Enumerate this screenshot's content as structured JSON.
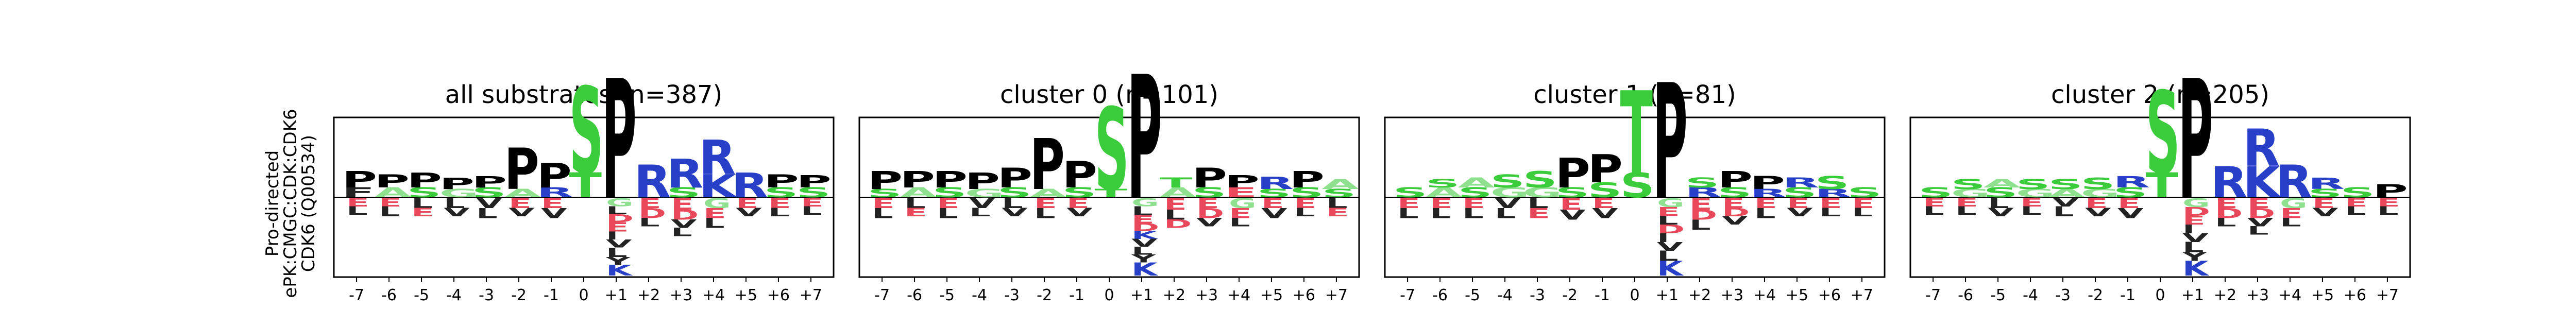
{
  "figure": {
    "side_label": [
      "Pro-directed",
      "ePK:CMGC:CDK:CDK6",
      "CDK6 (Q00534)"
    ]
  },
  "chart_data": [
    {
      "type": "sequence-logo",
      "title": "all substrates (n=387)",
      "positions": [
        "-7",
        "-6",
        "-5",
        "-4",
        "-3",
        "-2",
        "-1",
        "0",
        "+1",
        "+2",
        "+3",
        "+4",
        "+5",
        "+6",
        "+7"
      ],
      "up": [
        [
          [
            "F",
            0.12
          ],
          [
            "P",
            0.2
          ]
        ],
        [
          [
            "A",
            0.12
          ],
          [
            "P",
            0.16
          ]
        ],
        [
          [
            "S",
            0.12
          ],
          [
            "P",
            0.18
          ]
        ],
        [
          [
            "G",
            0.1
          ],
          [
            "P",
            0.14
          ]
        ],
        [
          [
            "S",
            0.12
          ],
          [
            "P",
            0.14
          ]
        ],
        [
          [
            "A",
            0.1
          ],
          [
            "P",
            0.5
          ]
        ],
        [
          [
            "R",
            0.12
          ],
          [
            "P",
            0.3
          ]
        ],
        [
          [
            "T",
            0.3
          ],
          [
            "S",
            1.05
          ]
        ],
        [
          [
            "P",
            1.45
          ]
        ],
        [
          [
            "R",
            0.4
          ]
        ],
        [
          [
            "S",
            0.12
          ],
          [
            "R",
            0.35
          ]
        ],
        [
          [
            "K",
            0.28
          ],
          [
            "R",
            0.42
          ]
        ],
        [
          [
            "R",
            0.3
          ]
        ],
        [
          [
            "S",
            0.12
          ],
          [
            "P",
            0.16
          ]
        ],
        [
          [
            "S",
            0.12
          ],
          [
            "P",
            0.15
          ]
        ]
      ],
      "down": [
        [
          [
            "E",
            0.1
          ],
          [
            "L",
            0.1
          ]
        ],
        [
          [
            "E",
            0.1
          ],
          [
            "L",
            0.12
          ]
        ],
        [
          [
            "L",
            0.12
          ],
          [
            "E",
            0.1
          ]
        ],
        [
          [
            "L",
            0.12
          ],
          [
            "V",
            0.1
          ]
        ],
        [
          [
            "V",
            0.12
          ],
          [
            "L",
            0.12
          ]
        ],
        [
          [
            "E",
            0.12
          ],
          [
            "V",
            0.1
          ]
        ],
        [
          [
            "E",
            0.12
          ],
          [
            "V",
            0.12
          ]
        ],
        [],
        [
          [
            "G",
            0.12
          ],
          [
            "L",
            0.12
          ],
          [
            "D",
            0.12
          ],
          [
            "E",
            0.14
          ],
          [
            "I",
            0.12
          ],
          [
            "V",
            0.12
          ],
          [
            "L",
            0.14
          ],
          [
            "Y",
            0.12
          ],
          [
            "K",
            0.16
          ]
        ],
        [
          [
            "E",
            0.12
          ],
          [
            "D",
            0.12
          ],
          [
            "L",
            0.1
          ]
        ],
        [
          [
            "E",
            0.14
          ],
          [
            "D",
            0.12
          ],
          [
            "V",
            0.1
          ],
          [
            "L",
            0.1
          ]
        ],
        [
          [
            "G",
            0.12
          ],
          [
            "E",
            0.12
          ],
          [
            "L",
            0.12
          ]
        ],
        [
          [
            "E",
            0.12
          ],
          [
            "V",
            0.1
          ]
        ],
        [
          [
            "E",
            0.12
          ],
          [
            "L",
            0.1
          ]
        ],
        [
          [
            "E",
            0.1
          ],
          [
            "L",
            0.1
          ]
        ]
      ]
    },
    {
      "type": "sequence-logo",
      "title": "cluster 0 (n=101)",
      "positions": [
        "-7",
        "-6",
        "-5",
        "-4",
        "-3",
        "-2",
        "-1",
        "0",
        "+1",
        "+2",
        "+3",
        "+4",
        "+5",
        "+6",
        "+7"
      ],
      "up": [
        [
          [
            "S",
            0.1
          ],
          [
            "P",
            0.22
          ]
        ],
        [
          [
            "A",
            0.12
          ],
          [
            "P",
            0.2
          ]
        ],
        [
          [
            "S",
            0.12
          ],
          [
            "P",
            0.2
          ]
        ],
        [
          [
            "G",
            0.1
          ],
          [
            "P",
            0.2
          ]
        ],
        [
          [
            "S",
            0.12
          ],
          [
            "P",
            0.24
          ]
        ],
        [
          [
            "A",
            0.1
          ],
          [
            "P",
            0.62
          ]
        ],
        [
          [
            "S",
            0.12
          ],
          [
            "P",
            0.32
          ]
        ],
        [
          [
            "T",
            0.1
          ],
          [
            "S",
            1.0
          ]
        ],
        [
          [
            "P",
            1.5
          ]
        ],
        [
          [
            "A",
            0.12
          ],
          [
            "T",
            0.12
          ]
        ],
        [
          [
            "S",
            0.12
          ],
          [
            "P",
            0.24
          ]
        ],
        [
          [
            "E",
            0.12
          ],
          [
            "P",
            0.15
          ]
        ],
        [
          [
            "S",
            0.1
          ],
          [
            "R",
            0.15
          ]
        ],
        [
          [
            "S",
            0.12
          ],
          [
            "P",
            0.2
          ]
        ],
        [
          [
            "S",
            0.1
          ],
          [
            "A",
            0.12
          ]
        ]
      ],
      "down": [
        [
          [
            "E",
            0.12
          ],
          [
            "L",
            0.12
          ]
        ],
        [
          [
            "L",
            0.12
          ],
          [
            "E",
            0.1
          ]
        ],
        [
          [
            "E",
            0.12
          ],
          [
            "L",
            0.12
          ]
        ],
        [
          [
            "V",
            0.12
          ],
          [
            "L",
            0.1
          ]
        ],
        [
          [
            "L",
            0.12
          ],
          [
            "V",
            0.1
          ]
        ],
        [
          [
            "E",
            0.12
          ],
          [
            "L",
            0.12
          ]
        ],
        [
          [
            "E",
            0.12
          ],
          [
            "V",
            0.1
          ]
        ],
        [],
        [
          [
            "G",
            0.12
          ],
          [
            "L",
            0.14
          ],
          [
            "E",
            0.12
          ],
          [
            "D",
            0.12
          ],
          [
            "K",
            0.12
          ],
          [
            "V",
            0.12
          ],
          [
            "L",
            0.12
          ],
          [
            "Y",
            0.12
          ],
          [
            "K",
            0.2
          ]
        ],
        [
          [
            "E",
            0.14
          ],
          [
            "L",
            0.12
          ],
          [
            "D",
            0.1
          ]
        ],
        [
          [
            "E",
            0.12
          ],
          [
            "D",
            0.12
          ],
          [
            "V",
            0.1
          ]
        ],
        [
          [
            "G",
            0.12
          ],
          [
            "E",
            0.12
          ],
          [
            "L",
            0.1
          ]
        ],
        [
          [
            "E",
            0.12
          ],
          [
            "V",
            0.12
          ]
        ],
        [
          [
            "E",
            0.12
          ],
          [
            "L",
            0.1
          ]
        ],
        [
          [
            "L",
            0.12
          ],
          [
            "E",
            0.1
          ]
        ]
      ]
    },
    {
      "type": "sequence-logo",
      "title": "cluster 1 (n=81)",
      "positions": [
        "-7",
        "-6",
        "-5",
        "-4",
        "-3",
        "-2",
        "-1",
        "0",
        "+1",
        "+2",
        "+3",
        "+4",
        "+5",
        "+6",
        "+7"
      ],
      "up": [
        [
          [
            "S",
            0.12
          ]
        ],
        [
          [
            "A",
            0.12
          ],
          [
            "S",
            0.1
          ]
        ],
        [
          [
            "S",
            0.12
          ],
          [
            "A",
            0.12
          ]
        ],
        [
          [
            "G",
            0.12
          ],
          [
            "S",
            0.16
          ]
        ],
        [
          [
            "G",
            0.12
          ],
          [
            "S",
            0.2
          ]
        ],
        [
          [
            "S",
            0.12
          ],
          [
            "P",
            0.36
          ]
        ],
        [
          [
            "S",
            0.18
          ],
          [
            "P",
            0.34
          ]
        ],
        [
          [
            "S",
            0.3
          ],
          [
            "T",
            1.0
          ]
        ],
        [
          [
            "P",
            1.4
          ]
        ],
        [
          [
            "R",
            0.12
          ],
          [
            "S",
            0.12
          ]
        ],
        [
          [
            "S",
            0.12
          ],
          [
            "P",
            0.2
          ]
        ],
        [
          [
            "R",
            0.1
          ],
          [
            "P",
            0.16
          ]
        ],
        [
          [
            "S",
            0.12
          ],
          [
            "R",
            0.12
          ]
        ],
        [
          [
            "R",
            0.1
          ],
          [
            "S",
            0.16
          ]
        ],
        [
          [
            "S",
            0.12
          ]
        ]
      ],
      "down": [
        [
          [
            "E",
            0.12
          ],
          [
            "L",
            0.12
          ]
        ],
        [
          [
            "E",
            0.12
          ],
          [
            "L",
            0.12
          ]
        ],
        [
          [
            "E",
            0.12
          ],
          [
            "L",
            0.12
          ]
        ],
        [
          [
            "V",
            0.12
          ],
          [
            "L",
            0.12
          ]
        ],
        [
          [
            "L",
            0.12
          ],
          [
            "E",
            0.12
          ]
        ],
        [
          [
            "E",
            0.14
          ],
          [
            "V",
            0.12
          ]
        ],
        [
          [
            "E",
            0.12
          ],
          [
            "V",
            0.12
          ]
        ],
        [],
        [
          [
            "G",
            0.12
          ],
          [
            "E",
            0.12
          ],
          [
            "L",
            0.12
          ],
          [
            "D",
            0.12
          ],
          [
            "I",
            0.12
          ],
          [
            "V",
            0.12
          ],
          [
            "L",
            0.14
          ],
          [
            "K",
            0.2
          ]
        ],
        [
          [
            "E",
            0.14
          ],
          [
            "D",
            0.12
          ],
          [
            "L",
            0.12
          ]
        ],
        [
          [
            "E",
            0.12
          ],
          [
            "D",
            0.1
          ],
          [
            "V",
            0.1
          ]
        ],
        [
          [
            "E",
            0.12
          ],
          [
            "L",
            0.12
          ]
        ],
        [
          [
            "E",
            0.12
          ],
          [
            "V",
            0.1
          ]
        ],
        [
          [
            "E",
            0.12
          ],
          [
            "L",
            0.1
          ]
        ],
        [
          [
            "E",
            0.12
          ],
          [
            "L",
            0.1
          ]
        ]
      ]
    },
    {
      "type": "sequence-logo",
      "title": "cluster 2 (n=205)",
      "positions": [
        "-7",
        "-6",
        "-5",
        "-4",
        "-3",
        "-2",
        "-1",
        "0",
        "+1",
        "+2",
        "+3",
        "+4",
        "+5",
        "+6",
        "+7"
      ],
      "up": [
        [
          [
            "S",
            0.12
          ]
        ],
        [
          [
            "G",
            0.1
          ],
          [
            "S",
            0.12
          ]
        ],
        [
          [
            "S",
            0.12
          ],
          [
            "A",
            0.1
          ]
        ],
        [
          [
            "G",
            0.1
          ],
          [
            "S",
            0.12
          ]
        ],
        [
          [
            "A",
            0.1
          ],
          [
            "S",
            0.12
          ]
        ],
        [
          [
            "G",
            0.1
          ],
          [
            "S",
            0.14
          ]
        ],
        [
          [
            "S",
            0.12
          ],
          [
            "R",
            0.14
          ]
        ],
        [
          [
            "T",
            0.3
          ],
          [
            "S",
            1.0
          ]
        ],
        [
          [
            "P",
            1.45
          ]
        ],
        [
          [
            "R",
            0.38
          ]
        ],
        [
          [
            "K",
            0.38
          ],
          [
            "R",
            0.45
          ]
        ],
        [
          [
            "R",
            0.4
          ]
        ],
        [
          [
            "S",
            0.1
          ],
          [
            "R",
            0.14
          ]
        ],
        [
          [
            "S",
            0.12
          ]
        ],
        [
          [
            "P",
            0.16
          ]
        ]
      ],
      "down": [
        [
          [
            "E",
            0.1
          ],
          [
            "L",
            0.1
          ]
        ],
        [
          [
            "E",
            0.1
          ],
          [
            "L",
            0.1
          ]
        ],
        [
          [
            "L",
            0.12
          ],
          [
            "V",
            0.1
          ]
        ],
        [
          [
            "E",
            0.1
          ],
          [
            "L",
            0.1
          ]
        ],
        [
          [
            "V",
            0.1
          ],
          [
            "L",
            0.12
          ]
        ],
        [
          [
            "E",
            0.12
          ],
          [
            "V",
            0.1
          ]
        ],
        [
          [
            "E",
            0.12
          ],
          [
            "V",
            0.12
          ]
        ],
        [],
        [
          [
            "G",
            0.12
          ],
          [
            "D",
            0.12
          ],
          [
            "E",
            0.12
          ],
          [
            "I",
            0.12
          ],
          [
            "V",
            0.12
          ],
          [
            "L",
            0.14
          ],
          [
            "Y",
            0.12
          ],
          [
            "K",
            0.2
          ]
        ],
        [
          [
            "E",
            0.12
          ],
          [
            "D",
            0.12
          ],
          [
            "L",
            0.1
          ]
        ],
        [
          [
            "E",
            0.12
          ],
          [
            "D",
            0.12
          ],
          [
            "V",
            0.1
          ],
          [
            "L",
            0.1
          ]
        ],
        [
          [
            "G",
            0.12
          ],
          [
            "E",
            0.12
          ],
          [
            "L",
            0.1
          ]
        ],
        [
          [
            "E",
            0.12
          ],
          [
            "V",
            0.1
          ]
        ],
        [
          [
            "E",
            0.1
          ],
          [
            "L",
            0.1
          ]
        ],
        [
          [
            "E",
            0.1
          ],
          [
            "L",
            0.1
          ]
        ]
      ]
    }
  ],
  "colors": {
    "acidic": "#e8485a",
    "basic": "#2840c8",
    "proline": "#000000",
    "polar": "#3bcc3b",
    "hydrophobic": "#222222",
    "small": "#8fe08f",
    "other": "#8a8a8a",
    "frame": "#000000",
    "baseline": "#000000"
  }
}
